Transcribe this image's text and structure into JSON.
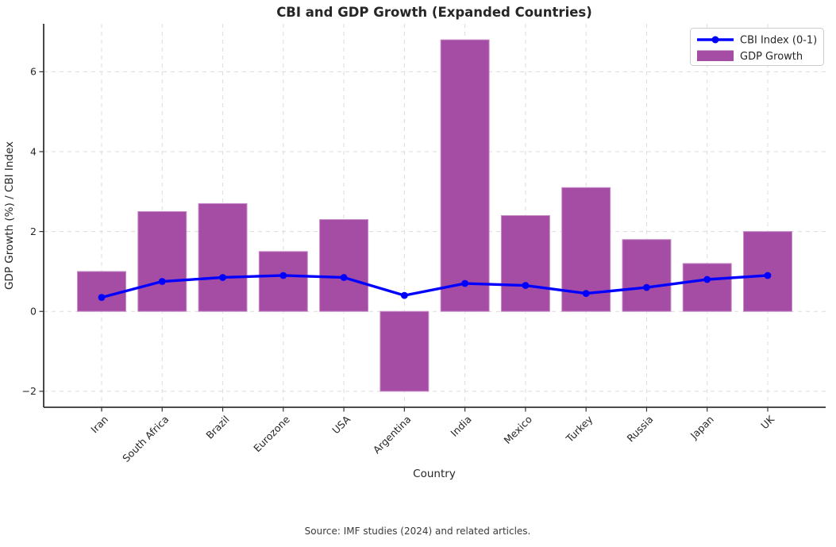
{
  "page": {
    "source_note": "Source: IMF studies (2024) and related articles."
  },
  "chart_data": {
    "type": "combo",
    "title": "CBI and GDP Growth (Expanded Countries)",
    "xlabel": "Country",
    "ylabel": "GDP Growth (%) / CBI Index",
    "categories": [
      "Iran",
      "South Africa",
      "Brazil",
      "Eurozone",
      "USA",
      "Argentina",
      "India",
      "Mexico",
      "Turkey",
      "Russia",
      "Japan",
      "UK"
    ],
    "series": [
      {
        "name": "GDP Growth",
        "type": "bar",
        "color": "#a54da5",
        "edge_color": "#c98fc9",
        "values": [
          1.0,
          2.5,
          2.7,
          1.5,
          2.3,
          -2.0,
          6.8,
          2.4,
          3.1,
          1.8,
          1.2,
          2.0
        ]
      },
      {
        "name": "CBI Index (0-1)",
        "type": "line",
        "color": "#0000ff",
        "marker": "circle",
        "values": [
          0.35,
          0.75,
          0.85,
          0.9,
          0.85,
          0.4,
          0.7,
          0.65,
          0.45,
          0.6,
          0.8,
          0.9
        ]
      }
    ],
    "legend": {
      "position": "upper right",
      "entries": [
        "CBI Index (0-1)",
        "GDP Growth"
      ]
    },
    "yticks": [
      -2,
      0,
      2,
      4,
      6
    ],
    "ylim": [
      -2.4,
      7.2
    ],
    "grid": true,
    "grid_style": "dashed"
  },
  "colors": {
    "bar": "#a54da5",
    "bar_edge": "#c98fc9",
    "line": "#0000ff",
    "grid": "#dcdcdc",
    "spine": "#333333",
    "text": "#262626",
    "legend_border": "#cccccc",
    "background": "#ffffff"
  }
}
